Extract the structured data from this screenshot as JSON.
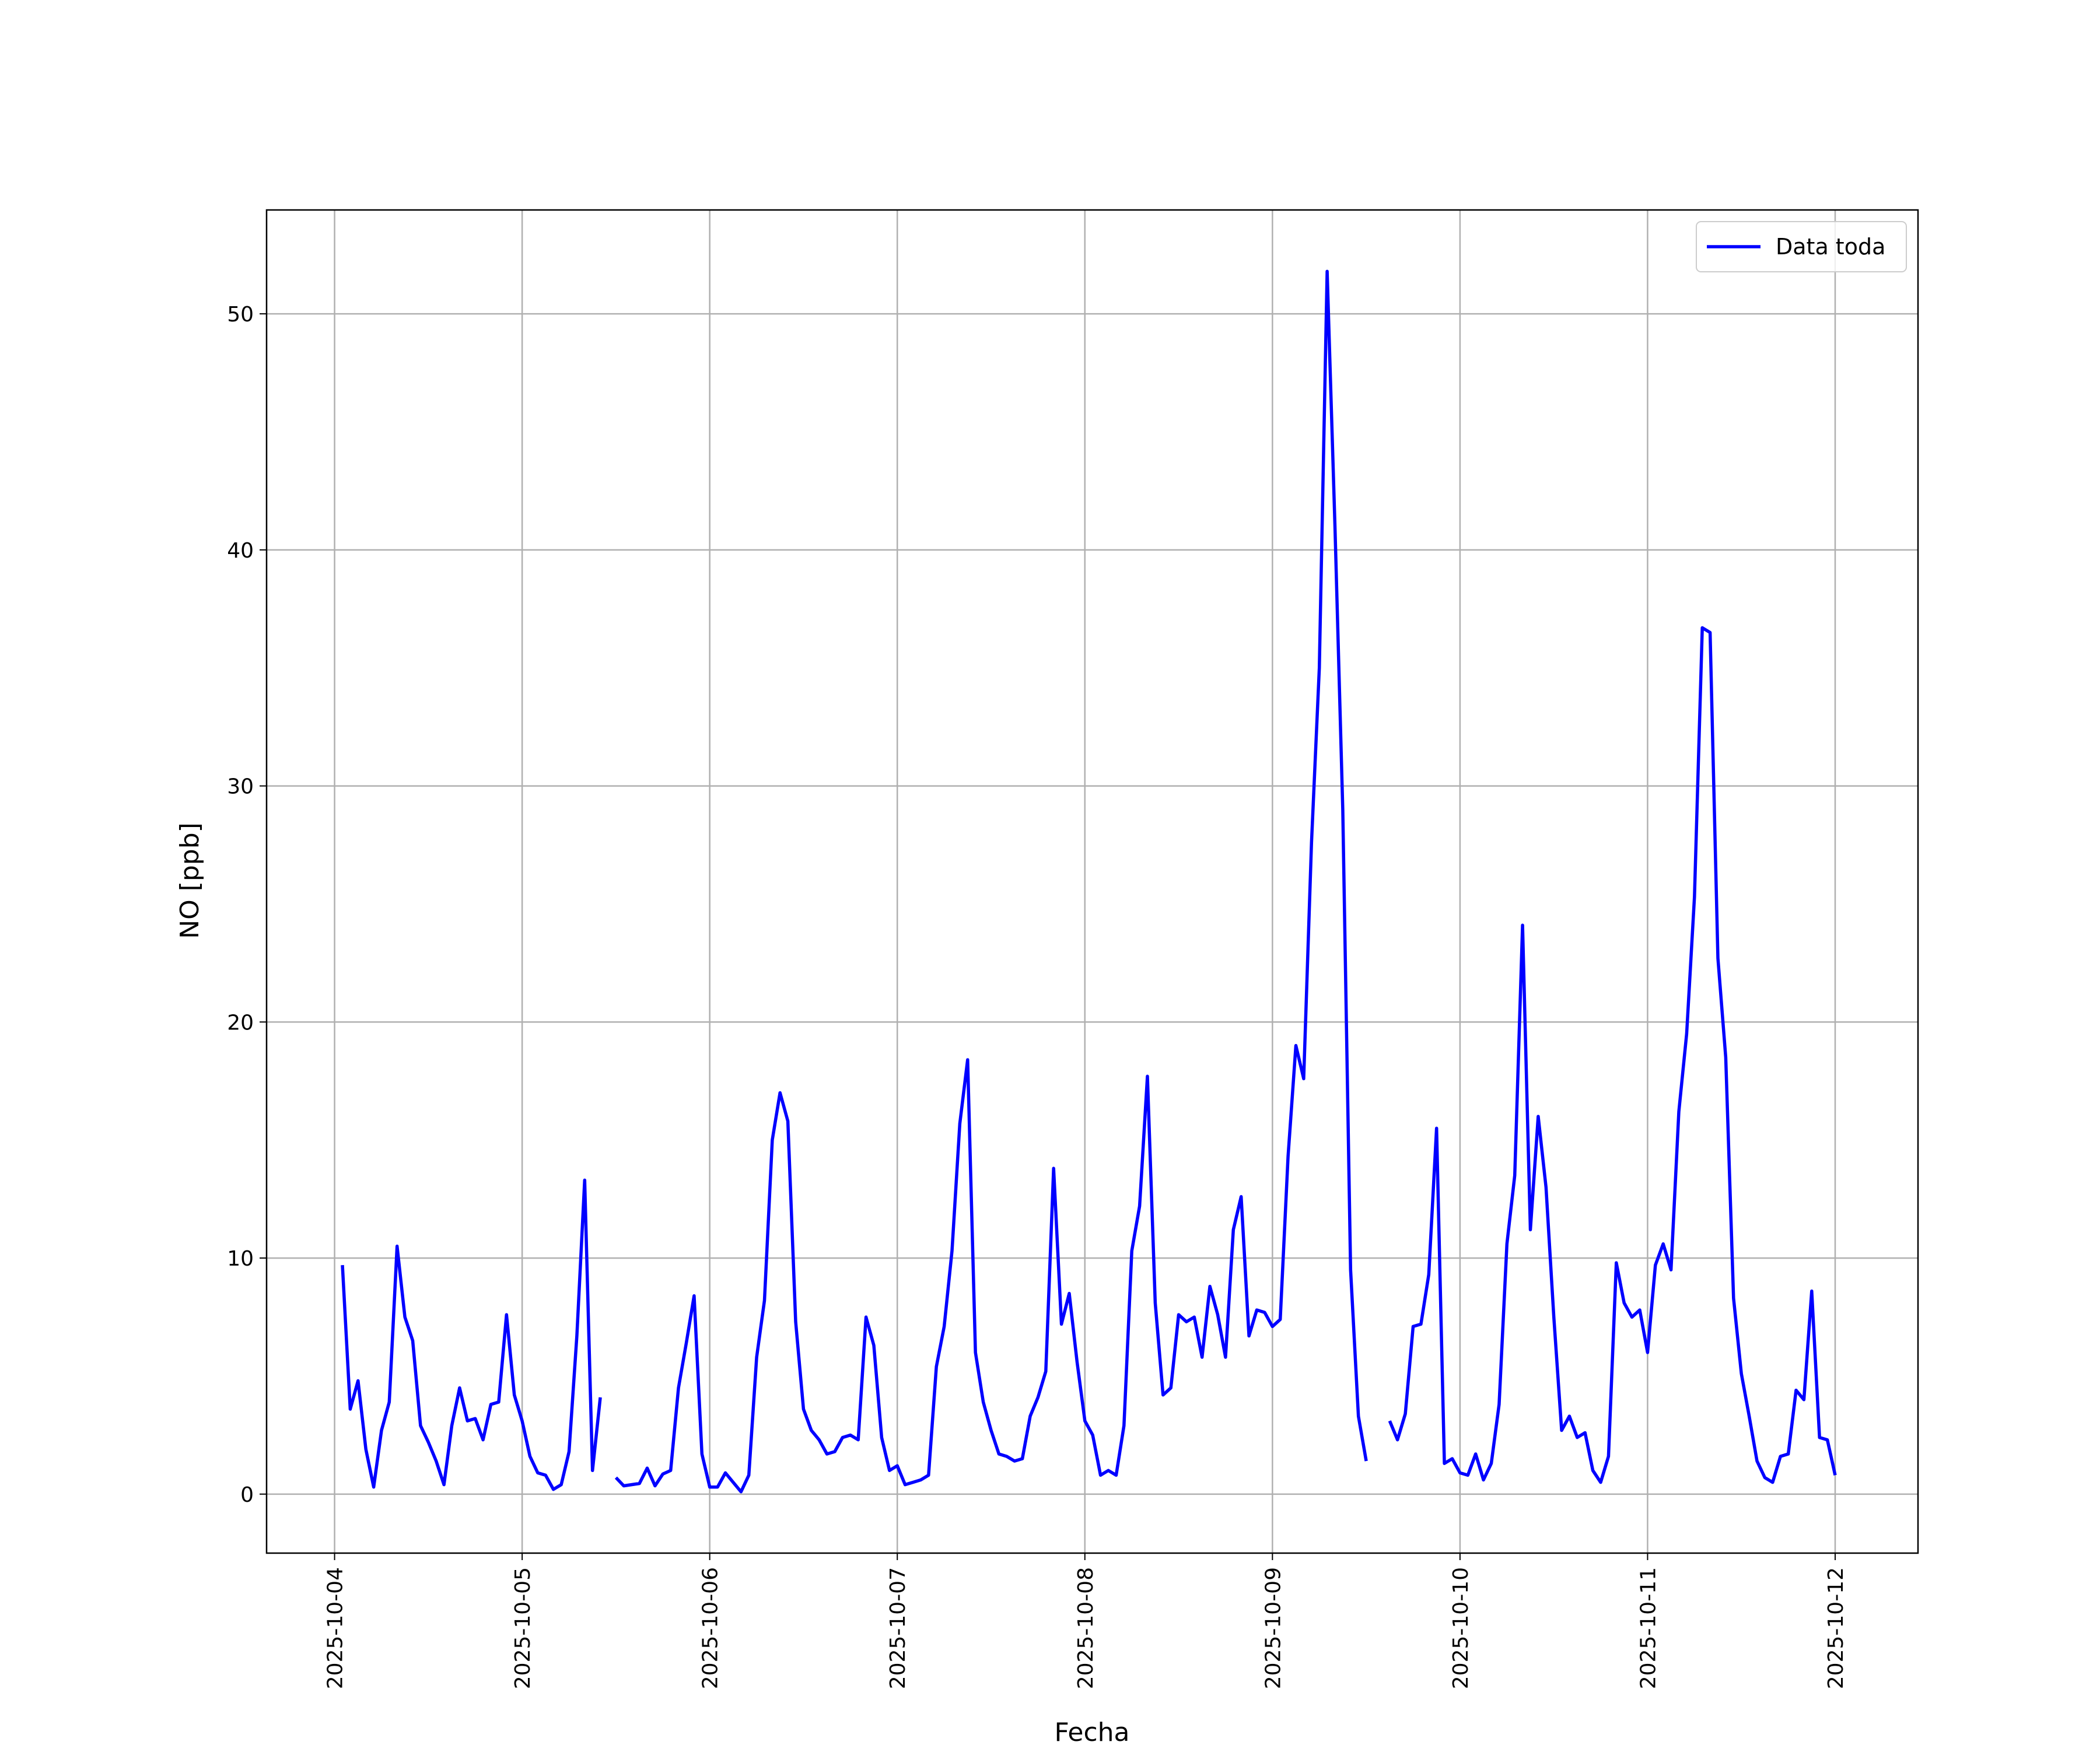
{
  "chart_data": {
    "type": "line",
    "x_label": "Fecha",
    "y_label": "NO [ppb]",
    "xlim": [
      "2025-10-03 15:18",
      "2025-10-12 10:36"
    ],
    "xticks": [
      "2025-10-04",
      "2025-10-05",
      "2025-10-06",
      "2025-10-07",
      "2025-10-08",
      "2025-10-09",
      "2025-10-10",
      "2025-10-11",
      "2025-10-12"
    ],
    "ylim": [
      -2.5,
      54.4
    ],
    "yticks": [
      0,
      10,
      20,
      30,
      40,
      50
    ],
    "grid": true,
    "legend": "upper right",
    "x": [
      "2025-10-04 01:00",
      "2025-10-04 02:00",
      "2025-10-04 03:00",
      "2025-10-04 04:00",
      "2025-10-04 05:00",
      "2025-10-04 06:00",
      "2025-10-04 07:00",
      "2025-10-04 08:00",
      "2025-10-04 09:00",
      "2025-10-04 10:00",
      "2025-10-04 11:00",
      "2025-10-04 12:00",
      "2025-10-04 13:00",
      "2025-10-04 14:00",
      "2025-10-04 15:00",
      "2025-10-04 16:00",
      "2025-10-04 17:00",
      "2025-10-04 18:00",
      "2025-10-04 19:00",
      "2025-10-04 20:00",
      "2025-10-04 21:00",
      "2025-10-04 22:00",
      "2025-10-04 23:00",
      "2025-10-05 00:00",
      "2025-10-05 01:00",
      "2025-10-05 02:00",
      "2025-10-05 03:00",
      "2025-10-05 04:00",
      "2025-10-05 05:00",
      "2025-10-05 06:00",
      "2025-10-05 07:00",
      "2025-10-05 08:00",
      "2025-10-05 09:00",
      "2025-10-05 10:00",
      "2025-10-05 11:00",
      "2025-10-05 12:00",
      "2025-10-05 13:00",
      "2025-10-05 14:00",
      "2025-10-05 15:00",
      "2025-10-05 16:00",
      "2025-10-05 17:00",
      "2025-10-05 18:00",
      "2025-10-05 19:00",
      "2025-10-05 20:00",
      "2025-10-05 21:00",
      "2025-10-05 22:00",
      "2025-10-05 23:00",
      "2025-10-06 00:00",
      "2025-10-06 01:00",
      "2025-10-06 02:00",
      "2025-10-06 03:00",
      "2025-10-06 04:00",
      "2025-10-06 05:00",
      "2025-10-06 06:00",
      "2025-10-06 07:00",
      "2025-10-06 08:00",
      "2025-10-06 09:00",
      "2025-10-06 10:00",
      "2025-10-06 11:00",
      "2025-10-06 12:00",
      "2025-10-06 13:00",
      "2025-10-06 14:00",
      "2025-10-06 15:00",
      "2025-10-06 16:00",
      "2025-10-06 17:00",
      "2025-10-06 18:00",
      "2025-10-06 19:00",
      "2025-10-06 20:00",
      "2025-10-06 21:00",
      "2025-10-06 22:00",
      "2025-10-06 23:00",
      "2025-10-07 00:00",
      "2025-10-07 01:00",
      "2025-10-07 02:00",
      "2025-10-07 03:00",
      "2025-10-07 04:00",
      "2025-10-07 05:00",
      "2025-10-07 06:00",
      "2025-10-07 07:00",
      "2025-10-07 08:00",
      "2025-10-07 09:00",
      "2025-10-07 10:00",
      "2025-10-07 11:00",
      "2025-10-07 12:00",
      "2025-10-07 13:00",
      "2025-10-07 14:00",
      "2025-10-07 15:00",
      "2025-10-07 16:00",
      "2025-10-07 17:00",
      "2025-10-07 18:00",
      "2025-10-07 19:00",
      "2025-10-07 20:00",
      "2025-10-07 21:00",
      "2025-10-07 22:00",
      "2025-10-07 23:00",
      "2025-10-08 00:00",
      "2025-10-08 01:00",
      "2025-10-08 02:00",
      "2025-10-08 03:00",
      "2025-10-08 04:00",
      "2025-10-08 05:00",
      "2025-10-08 06:00",
      "2025-10-08 07:00",
      "2025-10-08 08:00",
      "2025-10-08 09:00",
      "2025-10-08 10:00",
      "2025-10-08 11:00",
      "2025-10-08 12:00",
      "2025-10-08 13:00",
      "2025-10-08 14:00",
      "2025-10-08 15:00",
      "2025-10-08 16:00",
      "2025-10-08 17:00",
      "2025-10-08 18:00",
      "2025-10-08 19:00",
      "2025-10-08 20:00",
      "2025-10-08 21:00",
      "2025-10-08 22:00",
      "2025-10-08 23:00",
      "2025-10-09 00:00",
      "2025-10-09 01:00",
      "2025-10-09 02:00",
      "2025-10-09 03:00",
      "2025-10-09 04:00",
      "2025-10-09 05:00",
      "2025-10-09 06:00",
      "2025-10-09 07:00",
      "2025-10-09 08:00",
      "2025-10-09 09:00",
      "2025-10-09 10:00",
      "2025-10-09 11:00",
      "2025-10-09 12:00",
      "2025-10-09 13:00",
      "2025-10-09 14:00",
      "2025-10-09 15:00",
      "2025-10-09 16:00",
      "2025-10-09 17:00",
      "2025-10-09 18:00",
      "2025-10-09 19:00",
      "2025-10-09 20:00",
      "2025-10-09 21:00",
      "2025-10-09 22:00",
      "2025-10-09 23:00",
      "2025-10-10 00:00",
      "2025-10-10 01:00",
      "2025-10-10 02:00",
      "2025-10-10 03:00",
      "2025-10-10 04:00",
      "2025-10-10 05:00",
      "2025-10-10 06:00",
      "2025-10-10 07:00",
      "2025-10-10 08:00",
      "2025-10-10 09:00",
      "2025-10-10 10:00",
      "2025-10-10 11:00",
      "2025-10-10 12:00",
      "2025-10-10 13:00",
      "2025-10-10 14:00",
      "2025-10-10 15:00",
      "2025-10-10 16:00",
      "2025-10-10 17:00",
      "2025-10-10 18:00",
      "2025-10-10 19:00",
      "2025-10-10 20:00",
      "2025-10-10 21:00",
      "2025-10-10 22:00",
      "2025-10-10 23:00",
      "2025-10-11 00:00",
      "2025-10-11 01:00",
      "2025-10-11 02:00",
      "2025-10-11 03:00",
      "2025-10-11 04:00",
      "2025-10-11 05:00",
      "2025-10-11 06:00",
      "2025-10-11 07:00",
      "2025-10-11 08:00",
      "2025-10-11 09:00",
      "2025-10-11 10:00",
      "2025-10-11 11:00",
      "2025-10-11 12:00",
      "2025-10-11 13:00",
      "2025-10-11 14:00",
      "2025-10-11 15:00",
      "2025-10-11 16:00",
      "2025-10-11 17:00",
      "2025-10-11 18:00",
      "2025-10-11 19:00",
      "2025-10-11 20:00",
      "2025-10-11 21:00",
      "2025-10-11 22:00",
      "2025-10-11 23:00",
      "2025-10-12 00:00"
    ],
    "series": [
      {
        "name": "Data toda",
        "color": "#0000ff",
        "values": [
          9.7,
          3.6,
          4.8,
          1.9,
          0.3,
          2.7,
          3.9,
          10.5,
          7.5,
          6.5,
          2.9,
          2.2,
          1.4,
          0.4,
          2.9,
          4.5,
          3.1,
          3.2,
          2.3,
          3.8,
          3.9,
          7.6,
          4.2,
          3.1,
          1.6,
          0.9,
          0.8,
          0.2,
          0.4,
          1.8,
          6.7,
          13.3,
          1.0,
          4.1,
          null,
          0.7,
          0.35,
          0.4,
          0.45,
          1.1,
          0.35,
          0.85,
          1.0,
          4.5,
          6.4,
          8.4,
          1.7,
          0.3,
          0.3,
          0.9,
          0.5,
          0.1,
          0.8,
          5.8,
          8.2,
          15.0,
          17.0,
          15.8,
          7.3,
          3.6,
          2.7,
          2.3,
          1.7,
          1.8,
          2.4,
          2.5,
          2.3,
          7.5,
          6.3,
          2.4,
          1.0,
          1.2,
          0.4,
          0.5,
          0.6,
          0.8,
          5.4,
          7.1,
          10.3,
          15.7,
          18.4,
          6.0,
          3.9,
          2.7,
          1.7,
          1.6,
          1.4,
          1.5,
          3.3,
          4.1,
          5.2,
          13.8,
          7.2,
          8.5,
          5.6,
          3.1,
          2.5,
          0.8,
          1.0,
          0.8,
          2.9,
          10.3,
          12.2,
          17.7,
          8.1,
          4.2,
          4.5,
          7.6,
          7.3,
          7.5,
          5.8,
          8.8,
          7.6,
          5.8,
          11.2,
          12.6,
          6.7,
          7.8,
          7.7,
          7.1,
          7.4,
          14.3,
          19.0,
          17.6,
          27.6,
          35.0,
          51.8,
          41.0,
          29.0,
          9.5,
          3.3,
          1.4,
          null,
          null,
          3.1,
          2.3,
          3.4,
          7.1,
          7.2,
          9.3,
          15.5,
          1.3,
          1.5,
          0.9,
          0.8,
          1.7,
          0.6,
          1.3,
          3.8,
          10.6,
          13.5,
          24.1,
          11.2,
          16.0,
          13.0,
          7.5,
          2.7,
          3.3,
          2.4,
          2.6,
          1.0,
          0.5,
          1.6,
          9.8,
          8.1,
          7.5,
          7.8,
          6.0,
          9.7,
          10.6,
          9.5,
          16.2,
          19.5,
          25.3,
          36.7,
          36.5,
          22.7,
          18.5,
          8.3,
          5.1,
          3.3,
          1.4,
          0.7,
          0.5,
          1.6,
          1.7,
          4.4,
          4.0,
          8.6,
          2.4,
          2.3,
          0.8
        ]
      }
    ]
  }
}
